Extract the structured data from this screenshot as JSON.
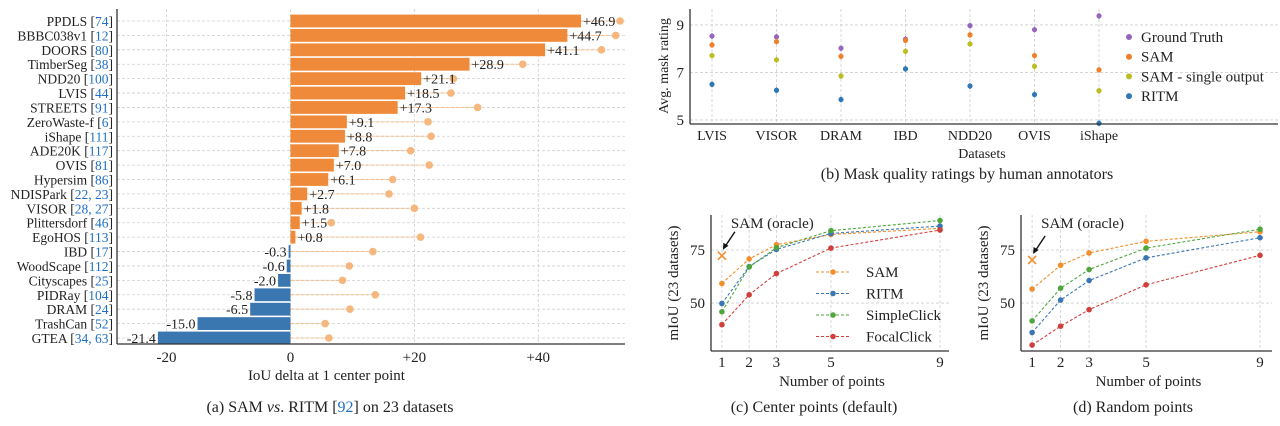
{
  "chart_data": [
    {
      "type": "bar",
      "panel": "a",
      "caption": {
        "prefix": "(a) SAM ",
        "italic": "vs",
        "mid": ". RITM [",
        "ref": "92",
        "suffix": "] on 23 datasets"
      },
      "xlabel": "IoU delta at 1 center point",
      "xlim": [
        -28,
        54
      ],
      "xticks": [
        -20,
        0,
        20,
        40
      ],
      "xtick_labels": [
        "-20",
        "0",
        "+20",
        "+40"
      ],
      "grid": true,
      "categories": [
        {
          "name": "PPDLS",
          "refs": "74"
        },
        {
          "name": "BBBC038v1",
          "refs": "12"
        },
        {
          "name": "DOORS",
          "refs": "80"
        },
        {
          "name": "TimberSeg",
          "refs": "38"
        },
        {
          "name": "NDD20",
          "refs": "100"
        },
        {
          "name": "LVIS",
          "refs": "44"
        },
        {
          "name": "STREETS",
          "refs": "91"
        },
        {
          "name": "ZeroWaste-f",
          "refs": "6"
        },
        {
          "name": "iShape",
          "refs": "111"
        },
        {
          "name": "ADE20K",
          "refs": "117"
        },
        {
          "name": "OVIS",
          "refs": "81"
        },
        {
          "name": "Hypersim",
          "refs": "86"
        },
        {
          "name": "NDISPark",
          "refs": "22, 23"
        },
        {
          "name": "VISOR",
          "refs": "28, 27"
        },
        {
          "name": "Plittersdorf",
          "refs": "46"
        },
        {
          "name": "EgoHOS",
          "refs": "113"
        },
        {
          "name": "IBD",
          "refs": "17"
        },
        {
          "name": "WoodScape",
          "refs": "112"
        },
        {
          "name": "Cityscapes",
          "refs": "25"
        },
        {
          "name": "PIDRay",
          "refs": "104"
        },
        {
          "name": "DRAM",
          "refs": "24"
        },
        {
          "name": "TrashCan",
          "refs": "52"
        },
        {
          "name": "GTEA",
          "refs": "34, 63"
        }
      ],
      "values": [
        46.9,
        44.7,
        41.1,
        28.9,
        21.1,
        18.5,
        17.3,
        9.1,
        8.8,
        7.8,
        7.0,
        6.1,
        2.7,
        1.8,
        1.5,
        0.8,
        -0.3,
        -0.6,
        -2.0,
        -5.8,
        -6.5,
        -15.0,
        -21.4
      ],
      "value_labels": [
        "+46.9",
        "+44.7",
        "+41.1",
        "+28.9",
        "+21.1",
        "+18.5",
        "+17.3",
        "+9.1",
        "+8.8",
        "+7.8",
        "+7.0",
        "+6.1",
        "+2.7",
        "+1.8",
        "+1.5",
        "+0.8",
        "-0.3",
        "-0.6",
        "-2.0",
        "-5.8",
        "-6.5",
        "-15.0",
        "-21.4"
      ],
      "oracle_values": [
        53.2,
        52.5,
        50.2,
        37.5,
        26.3,
        25.9,
        30.2,
        22.2,
        22.7,
        19.4,
        22.4,
        16.5,
        15.9,
        20.0,
        6.6,
        21.0,
        13.3,
        9.5,
        8.4,
        13.7,
        9.6,
        5.6,
        6.2
      ],
      "colors": {
        "positive": "#ef8a3a",
        "negative": "#3a76b0",
        "oracle": "#f5b77d",
        "ref": "#1f6fc5"
      }
    },
    {
      "type": "scatter",
      "panel": "b",
      "caption": "(b) Mask quality ratings by human annotators",
      "xlabel": "Datasets",
      "ylabel": "Avg. mask rating",
      "ylim": [
        4.83,
        9.67
      ],
      "yticks": [
        5,
        7,
        9
      ],
      "grid": true,
      "legend": "right",
      "categories": [
        "LVIS",
        "VISOR",
        "DRAM",
        "IBD",
        "NDD20",
        "OVIS",
        "iShape"
      ],
      "series": [
        {
          "name": "Ground Truth",
          "color": "#9467bd",
          "values": [
            8.53,
            8.5,
            8.02,
            8.4,
            8.97,
            8.8,
            9.38
          ]
        },
        {
          "name": "SAM",
          "color": "#f07f2a",
          "values": [
            8.16,
            8.3,
            7.68,
            8.35,
            8.58,
            7.71,
            7.11
          ]
        },
        {
          "name": "SAM - single output",
          "color": "#bcbd22",
          "values": [
            7.71,
            7.53,
            6.85,
            7.89,
            8.2,
            7.26,
            6.23
          ]
        },
        {
          "name": "RITM",
          "color": "#2f78b6",
          "values": [
            6.5,
            6.25,
            5.86,
            7.15,
            6.43,
            6.07,
            4.86
          ]
        }
      ]
    },
    {
      "type": "line",
      "panel": "c",
      "caption": "(c) Center points (default)",
      "xlabel": "Number of points",
      "ylabel": "mIoU (23 datasets)",
      "xlim": [
        0.6,
        9.33
      ],
      "ylim": [
        27.4,
        91.5
      ],
      "x": [
        1,
        2,
        3,
        5,
        9
      ],
      "yticks": [
        50,
        75
      ],
      "grid": true,
      "legend": "bottom-right",
      "annotation": "SAM (oracle)",
      "oracle": {
        "x": 1,
        "y": 72.3
      },
      "series": [
        {
          "name": "SAM",
          "color": "#f28e2b",
          "values": [
            59.2,
            70.8,
            77.5,
            82.3,
            85.2
          ]
        },
        {
          "name": "RITM",
          "color": "#3a76b4",
          "values": [
            49.8,
            67.2,
            75.3,
            82.8,
            86.3
          ]
        },
        {
          "name": "SimpleClick",
          "color": "#4ea63d",
          "values": [
            45.9,
            67.0,
            76.1,
            84.1,
            88.9
          ]
        },
        {
          "name": "FocalClick",
          "color": "#d23f3a",
          "values": [
            39.8,
            53.9,
            63.9,
            75.9,
            84.4
          ]
        }
      ]
    },
    {
      "type": "line",
      "panel": "d",
      "caption": "(d) Random points",
      "xlabel": "Number of points",
      "ylabel": "mIoU (23 datasets)",
      "xlim": [
        0.61,
        9.42
      ],
      "ylim": [
        27.4,
        91.5
      ],
      "x": [
        1,
        2,
        3,
        5,
        9
      ],
      "yticks": [
        50,
        75
      ],
      "grid": true,
      "annotation": "SAM (oracle)",
      "oracle": {
        "x": 1,
        "y": 70.3
      },
      "series": [
        {
          "name": "SAM",
          "color": "#f28e2b",
          "values": [
            56.6,
            67.8,
            73.6,
            79.1,
            83.6
          ]
        },
        {
          "name": "RITM",
          "color": "#3a76b4",
          "values": [
            36.1,
            51.4,
            60.6,
            71.3,
            80.8
          ]
        },
        {
          "name": "SimpleClick",
          "color": "#4ea63d",
          "values": [
            41.6,
            57.0,
            65.8,
            75.9,
            84.8
          ]
        },
        {
          "name": "FocalClick",
          "color": "#d23f3a",
          "values": [
            30.2,
            39.1,
            46.9,
            58.6,
            72.5
          ]
        }
      ]
    }
  ]
}
